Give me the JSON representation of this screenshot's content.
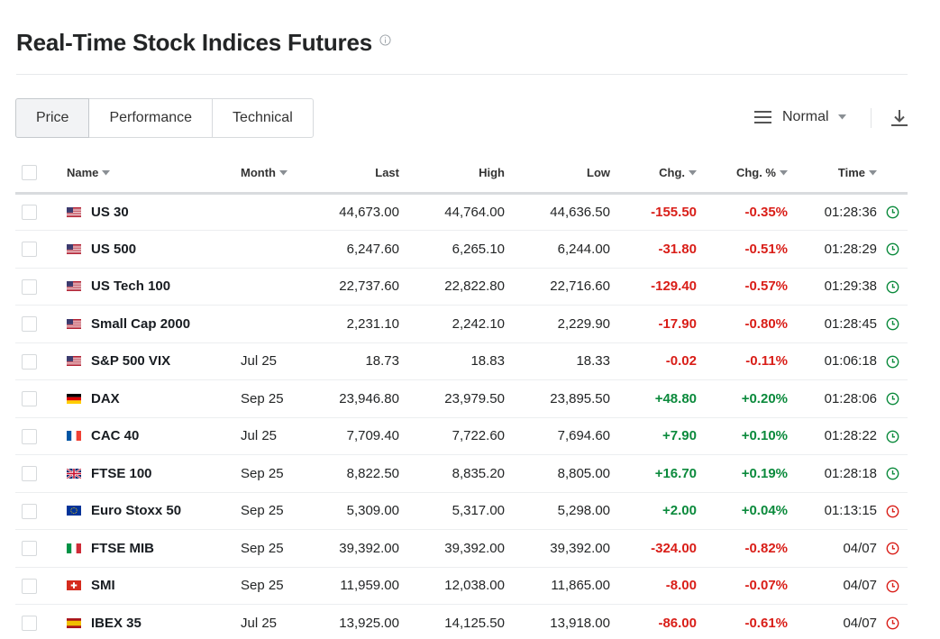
{
  "header": {
    "title": "Real-Time Stock Indices Futures"
  },
  "tabs": [
    {
      "label": "Price"
    },
    {
      "label": "Performance"
    },
    {
      "label": "Technical"
    }
  ],
  "view": {
    "selected": "Normal"
  },
  "columns": {
    "name": "Name",
    "month": "Month",
    "last": "Last",
    "high": "High",
    "low": "Low",
    "chg": "Chg.",
    "chg_pct": "Chg. %",
    "time": "Time"
  },
  "colors": {
    "positive": "#0b8a3c",
    "negative": "#d91e18",
    "clock_open": "#0b8a3c",
    "clock_closed": "#d91e18"
  },
  "rows": [
    {
      "flag": "us",
      "name": "US 30",
      "month": "",
      "last": "44,673.00",
      "high": "44,764.00",
      "low": "44,636.50",
      "chg": "-155.50",
      "chg_pct": "-0.35%",
      "time": "01:28:36",
      "status": "open"
    },
    {
      "flag": "us",
      "name": "US 500",
      "month": "",
      "last": "6,247.60",
      "high": "6,265.10",
      "low": "6,244.00",
      "chg": "-31.80",
      "chg_pct": "-0.51%",
      "time": "01:28:29",
      "status": "open"
    },
    {
      "flag": "us",
      "name": "US Tech 100",
      "month": "",
      "last": "22,737.60",
      "high": "22,822.80",
      "low": "22,716.60",
      "chg": "-129.40",
      "chg_pct": "-0.57%",
      "time": "01:29:38",
      "status": "open"
    },
    {
      "flag": "us",
      "name": "Small Cap 2000",
      "month": "",
      "last": "2,231.10",
      "high": "2,242.10",
      "low": "2,229.90",
      "chg": "-17.90",
      "chg_pct": "-0.80%",
      "time": "01:28:45",
      "status": "open"
    },
    {
      "flag": "us",
      "name": "S&P 500 VIX",
      "month": "Jul 25",
      "last": "18.73",
      "high": "18.83",
      "low": "18.33",
      "chg": "-0.02",
      "chg_pct": "-0.11%",
      "time": "01:06:18",
      "status": "open"
    },
    {
      "flag": "de",
      "name": "DAX",
      "month": "Sep 25",
      "last": "23,946.80",
      "high": "23,979.50",
      "low": "23,895.50",
      "chg": "+48.80",
      "chg_pct": "+0.20%",
      "time": "01:28:06",
      "status": "open"
    },
    {
      "flag": "fr",
      "name": "CAC 40",
      "month": "Jul 25",
      "last": "7,709.40",
      "high": "7,722.60",
      "low": "7,694.60",
      "chg": "+7.90",
      "chg_pct": "+0.10%",
      "time": "01:28:22",
      "status": "open"
    },
    {
      "flag": "gb",
      "name": "FTSE 100",
      "month": "Sep 25",
      "last": "8,822.50",
      "high": "8,835.20",
      "low": "8,805.00",
      "chg": "+16.70",
      "chg_pct": "+0.19%",
      "time": "01:28:18",
      "status": "open"
    },
    {
      "flag": "eu",
      "name": "Euro Stoxx 50",
      "month": "Sep 25",
      "last": "5,309.00",
      "high": "5,317.00",
      "low": "5,298.00",
      "chg": "+2.00",
      "chg_pct": "+0.04%",
      "time": "01:13:15",
      "status": "closed"
    },
    {
      "flag": "it",
      "name": "FTSE MIB",
      "month": "Sep 25",
      "last": "39,392.00",
      "high": "39,392.00",
      "low": "39,392.00",
      "chg": "-324.00",
      "chg_pct": "-0.82%",
      "time": "04/07",
      "status": "closed"
    },
    {
      "flag": "ch",
      "name": "SMI",
      "month": "Sep 25",
      "last": "11,959.00",
      "high": "12,038.00",
      "low": "11,865.00",
      "chg": "-8.00",
      "chg_pct": "-0.07%",
      "time": "04/07",
      "status": "closed"
    },
    {
      "flag": "es",
      "name": "IBEX 35",
      "month": "Jul 25",
      "last": "13,925.00",
      "high": "14,125.50",
      "low": "13,918.00",
      "chg": "-86.00",
      "chg_pct": "-0.61%",
      "time": "04/07",
      "status": "closed"
    }
  ]
}
